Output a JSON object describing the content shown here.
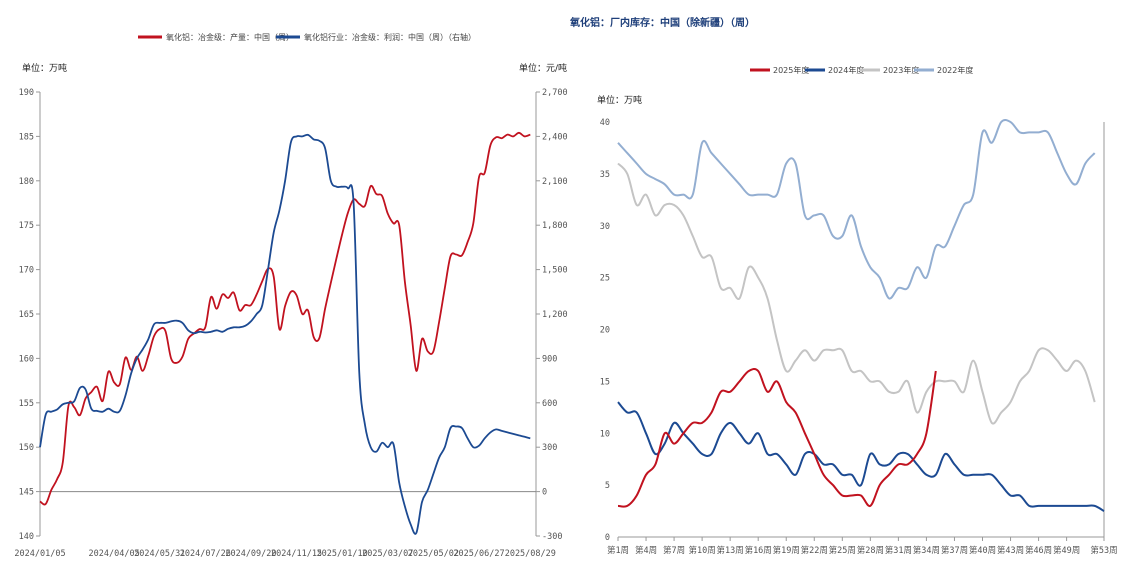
{
  "colors": {
    "red": "#c1121f",
    "navy": "#1c4a92",
    "lightgray": "#c4c4c4",
    "lightblue": "#93aed1",
    "axis": "#999999",
    "zero_line": "#888888",
    "title_blue": "#1e3f7a"
  },
  "chart_data": [
    {
      "type": "line",
      "title": "",
      "legend_placement": "top-center",
      "legend": [
        "氧化铝：冶金级：产量：中国（周）",
        "氧化铝行业：冶金级：利润：中国（周）（右轴）"
      ],
      "left_unit": "单位：万吨",
      "right_unit": "单位：元/吨",
      "ylim_left": [
        140,
        190
      ],
      "ylim_right": [
        -300,
        2700
      ],
      "left_ticks": [
        "190",
        "185",
        "180",
        "175",
        "170",
        "165",
        "160",
        "155",
        "150",
        "145",
        "140"
      ],
      "right_ticks": [
        "2,700",
        "2,400",
        "2,100",
        "1,800",
        "1,500",
        "1,200",
        "900",
        "600",
        "300",
        "0",
        "-300"
      ],
      "x_range": [
        "2024-01-05",
        "2025-09-05"
      ],
      "x_ticks": [
        "2024/01/05",
        "2024/04/05",
        "2024/05/31",
        "2024/07/26",
        "2024/09/20",
        "2024/11/15",
        "2025/01/10",
        "2025/03/07",
        "2025/05/02",
        "2025/06/27",
        "2025/08/29"
      ],
      "grid": false,
      "series": [
        {
          "name": "氧化铝：冶金级：产量：中国（周）",
          "color": "red",
          "axis": "left",
          "points": [
            [
              "2024-01-05",
              143.9
            ],
            [
              "2024-01-12",
              143.6
            ],
            [
              "2024-01-19",
              145.2
            ],
            [
              "2024-01-26",
              146.4
            ],
            [
              "2024-02-02",
              148.3
            ],
            [
              "2024-02-09",
              154.7
            ],
            [
              "2024-02-16",
              154.5
            ],
            [
              "2024-02-23",
              153.6
            ],
            [
              "2024-03-01",
              155.5
            ],
            [
              "2024-03-08",
              156.2
            ],
            [
              "2024-03-15",
              156.8
            ],
            [
              "2024-03-22",
              155.2
            ],
            [
              "2024-03-29",
              158.5
            ],
            [
              "2024-04-05",
              157.3
            ],
            [
              "2024-04-12",
              157.1
            ],
            [
              "2024-04-19",
              160.1
            ],
            [
              "2024-04-26",
              158.7
            ],
            [
              "2024-05-03",
              160.2
            ],
            [
              "2024-05-10",
              158.6
            ],
            [
              "2024-05-17",
              160.3
            ],
            [
              "2024-05-24",
              162.5
            ],
            [
              "2024-05-31",
              163.3
            ],
            [
              "2024-06-07",
              163.1
            ],
            [
              "2024-06-14",
              160.0
            ],
            [
              "2024-06-21",
              159.5
            ],
            [
              "2024-06-28",
              160.2
            ],
            [
              "2024-07-05",
              162.2
            ],
            [
              "2024-07-12",
              162.8
            ],
            [
              "2024-07-19",
              163.3
            ],
            [
              "2024-07-26",
              163.5
            ],
            [
              "2024-08-02",
              166.9
            ],
            [
              "2024-08-09",
              165.6
            ],
            [
              "2024-08-16",
              167.2
            ],
            [
              "2024-08-23",
              166.8
            ],
            [
              "2024-08-30",
              167.4
            ],
            [
              "2024-09-06",
              165.4
            ],
            [
              "2024-09-13",
              166.0
            ],
            [
              "2024-09-20",
              166.0
            ],
            [
              "2024-09-27",
              167.2
            ],
            [
              "2024-10-04",
              168.7
            ],
            [
              "2024-10-11",
              170.1
            ],
            [
              "2024-10-18",
              169.2
            ],
            [
              "2024-10-25",
              163.3
            ],
            [
              "2024-11-01",
              165.9
            ],
            [
              "2024-11-08",
              167.5
            ],
            [
              "2024-11-15",
              167.1
            ],
            [
              "2024-11-22",
              165.0
            ],
            [
              "2024-11-29",
              165.4
            ],
            [
              "2024-12-06",
              162.4
            ],
            [
              "2024-12-13",
              162.3
            ],
            [
              "2024-12-20",
              165.6
            ],
            [
              "2024-12-27",
              168.5
            ],
            [
              "2025-01-03",
              171.3
            ],
            [
              "2025-01-10",
              174.0
            ],
            [
              "2025-01-17",
              176.4
            ],
            [
              "2025-01-24",
              177.9
            ],
            [
              "2025-01-31",
              177.4
            ],
            [
              "2025-02-07",
              177.2
            ],
            [
              "2025-02-14",
              179.4
            ],
            [
              "2025-02-21",
              178.5
            ],
            [
              "2025-02-28",
              178.3
            ],
            [
              "2025-03-07",
              176.3
            ],
            [
              "2025-03-14",
              175.2
            ],
            [
              "2025-03-21",
              175.0
            ],
            [
              "2025-03-28",
              168.6
            ],
            [
              "2025-04-04",
              163.8
            ],
            [
              "2025-04-11",
              158.6
            ],
            [
              "2025-04-18",
              162.2
            ],
            [
              "2025-04-25",
              160.8
            ],
            [
              "2025-05-02",
              160.8
            ],
            [
              "2025-05-09",
              164.1
            ],
            [
              "2025-05-16",
              167.9
            ],
            [
              "2025-05-23",
              171.5
            ],
            [
              "2025-05-30",
              171.7
            ],
            [
              "2025-06-06",
              171.6
            ],
            [
              "2025-06-13",
              173.1
            ],
            [
              "2025-06-20",
              175.2
            ],
            [
              "2025-06-27",
              180.4
            ],
            [
              "2025-07-04",
              180.9
            ],
            [
              "2025-07-11",
              184.0
            ],
            [
              "2025-07-18",
              184.9
            ],
            [
              "2025-07-25",
              184.8
            ],
            [
              "2025-08-01",
              185.2
            ],
            [
              "2025-08-08",
              185.0
            ],
            [
              "2025-08-15",
              185.4
            ],
            [
              "2025-08-22",
              185.0
            ],
            [
              "2025-08-29",
              185.2
            ]
          ]
        },
        {
          "name": "氧化铝行业：冶金级：利润：中国（周）（右轴）",
          "color": "navy",
          "axis": "right",
          "points": [
            [
              "2024-01-05",
              300
            ],
            [
              "2024-01-12",
              520
            ],
            [
              "2024-01-19",
              540
            ],
            [
              "2024-01-26",
              555
            ],
            [
              "2024-02-02",
              590
            ],
            [
              "2024-02-09",
              600
            ],
            [
              "2024-02-16",
              610
            ],
            [
              "2024-02-23",
              700
            ],
            [
              "2024-03-01",
              690
            ],
            [
              "2024-03-08",
              560
            ],
            [
              "2024-03-15",
              545
            ],
            [
              "2024-03-22",
              540
            ],
            [
              "2024-03-29",
              560
            ],
            [
              "2024-04-05",
              540
            ],
            [
              "2024-04-12",
              545
            ],
            [
              "2024-04-19",
              650
            ],
            [
              "2024-04-26",
              800
            ],
            [
              "2024-05-03",
              900
            ],
            [
              "2024-05-10",
              960
            ],
            [
              "2024-05-17",
              1030
            ],
            [
              "2024-05-24",
              1130
            ],
            [
              "2024-05-31",
              1140
            ],
            [
              "2024-06-07",
              1140
            ],
            [
              "2024-06-14",
              1150
            ],
            [
              "2024-06-21",
              1155
            ],
            [
              "2024-06-28",
              1140
            ],
            [
              "2024-07-05",
              1090
            ],
            [
              "2024-07-12",
              1070
            ],
            [
              "2024-07-19",
              1080
            ],
            [
              "2024-07-26",
              1075
            ],
            [
              "2024-08-02",
              1080
            ],
            [
              "2024-08-09",
              1090
            ],
            [
              "2024-08-16",
              1080
            ],
            [
              "2024-08-23",
              1100
            ],
            [
              "2024-08-30",
              1110
            ],
            [
              "2024-09-06",
              1110
            ],
            [
              "2024-09-13",
              1120
            ],
            [
              "2024-09-20",
              1150
            ],
            [
              "2024-09-27",
              1200
            ],
            [
              "2024-10-04",
              1260
            ],
            [
              "2024-10-11",
              1500
            ],
            [
              "2024-10-18",
              1750
            ],
            [
              "2024-10-25",
              1900
            ],
            [
              "2024-11-01",
              2100
            ],
            [
              "2024-11-08",
              2360
            ],
            [
              "2024-11-15",
              2400
            ],
            [
              "2024-11-22",
              2400
            ],
            [
              "2024-11-29",
              2410
            ],
            [
              "2024-12-06",
              2380
            ],
            [
              "2024-12-13",
              2370
            ],
            [
              "2024-12-20",
              2320
            ],
            [
              "2024-12-27",
              2100
            ],
            [
              "2025-01-03",
              2060
            ],
            [
              "2025-01-10",
              2060
            ],
            [
              "2025-01-17",
              2050
            ],
            [
              "2025-01-24",
              1950
            ],
            [
              "2025-01-31",
              800
            ],
            [
              "2025-02-07",
              450
            ],
            [
              "2025-02-14",
              300
            ],
            [
              "2025-02-21",
              270
            ],
            [
              "2025-02-28",
              330
            ],
            [
              "2025-03-07",
              300
            ],
            [
              "2025-03-14",
              320
            ],
            [
              "2025-03-21",
              60
            ],
            [
              "2025-03-28",
              -100
            ],
            [
              "2025-04-04",
              -220
            ],
            [
              "2025-04-11",
              -280
            ],
            [
              "2025-04-18",
              -70
            ],
            [
              "2025-04-25",
              10
            ],
            [
              "2025-05-02",
              120
            ],
            [
              "2025-05-09",
              230
            ],
            [
              "2025-05-16",
              300
            ],
            [
              "2025-05-23",
              430
            ],
            [
              "2025-05-30",
              440
            ],
            [
              "2025-06-06",
              430
            ],
            [
              "2025-06-13",
              360
            ],
            [
              "2025-06-20",
              300
            ],
            [
              "2025-06-27",
              310
            ],
            [
              "2025-07-04",
              360
            ],
            [
              "2025-07-11",
              400
            ],
            [
              "2025-07-18",
              420
            ],
            [
              "2025-07-25",
              410
            ],
            [
              "2025-08-01",
              400
            ],
            [
              "2025-08-08",
              390
            ],
            [
              "2025-08-15",
              380
            ],
            [
              "2025-08-22",
              370
            ],
            [
              "2025-08-29",
              360
            ]
          ]
        }
      ]
    },
    {
      "type": "line",
      "title": "氧化铝：厂内库存：中国（除新疆）（周）",
      "legend_placement": "top-center",
      "legend": [
        "2025年度",
        "2024年度",
        "2023年度",
        "2022年度"
      ],
      "unit": "单位：万吨",
      "ylim": [
        0,
        40
      ],
      "y_ticks": [
        "40",
        "35",
        "30",
        "25",
        "20",
        "15",
        "10",
        "5",
        "0"
      ],
      "x_range": [
        1,
        53
      ],
      "x_ticks": [
        "第1周",
        "第4周",
        "第7周",
        "第10周",
        "第13周",
        "第16周",
        "第19周",
        "第22周",
        "第25周",
        "第28周",
        "第31周",
        "第34周",
        "第37周",
        "第40周",
        "第43周",
        "第46周",
        "第49周",
        "第53周"
      ],
      "x_tick_weeks": [
        1,
        4,
        7,
        10,
        13,
        16,
        19,
        22,
        25,
        28,
        31,
        34,
        37,
        40,
        43,
        46,
        49,
        53
      ],
      "grid": false,
      "series": [
        {
          "name": "2025年度",
          "color": "red",
          "values": [
            3,
            3,
            4,
            6,
            7,
            10,
            9,
            10,
            11,
            11,
            12,
            14,
            14,
            15,
            16,
            16,
            14,
            15,
            13,
            12,
            10,
            8,
            6,
            5,
            4,
            4,
            4,
            3,
            5,
            6,
            7,
            7,
            8,
            10,
            16
          ]
        },
        {
          "name": "2024年度",
          "color": "navy",
          "values": [
            13,
            12,
            12,
            10,
            8,
            9,
            11,
            10,
            9,
            8,
            8,
            10,
            11,
            10,
            9,
            10,
            8,
            8,
            7,
            6,
            8,
            8,
            7,
            7,
            6,
            6,
            5,
            8,
            7,
            7,
            8,
            8,
            7,
            6,
            6,
            8,
            7,
            6,
            6,
            6,
            6,
            5,
            4,
            4,
            3,
            3,
            3,
            3,
            3,
            3,
            3,
            3,
            2.5
          ]
        },
        {
          "name": "2023年度",
          "color": "lightgray",
          "values": [
            36,
            35,
            32,
            33,
            31,
            32,
            32,
            31,
            29,
            27,
            27,
            24,
            24,
            23,
            26,
            25,
            23,
            19,
            16,
            17,
            18,
            17,
            18,
            18,
            18,
            16,
            16,
            15,
            15,
            14,
            14,
            15,
            12,
            14,
            15,
            15,
            15,
            14,
            17,
            14,
            11,
            12,
            13,
            15,
            16,
            18,
            18,
            17,
            16,
            17,
            16,
            13
          ]
        },
        {
          "name": "2022年度",
          "color": "lightblue",
          "values": [
            38,
            37,
            36,
            35,
            34.5,
            34,
            33,
            33,
            33,
            38,
            37,
            36,
            35,
            34,
            33,
            33,
            33,
            33,
            36,
            36,
            31,
            31,
            31,
            29,
            29,
            31,
            28,
            26,
            25,
            23,
            24,
            24,
            26,
            25,
            28,
            28,
            30,
            32,
            33,
            39,
            38,
            40,
            40,
            39,
            39,
            39,
            39,
            37,
            35,
            34,
            36,
            37
          ]
        }
      ]
    }
  ]
}
